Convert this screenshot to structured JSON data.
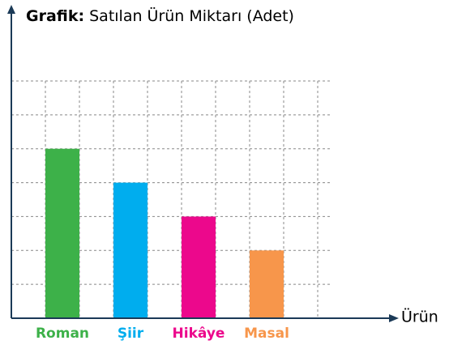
{
  "chart_data": {
    "type": "bar",
    "title_label": "Grafik:",
    "title": "Satılan Ürün Miktarı (Adet)",
    "x_label": "Ürün",
    "categories": [
      "Roman",
      "Şiir",
      "Hikâye",
      "Masal"
    ],
    "values": [
      5,
      4,
      3,
      2
    ],
    "colors": [
      "#3db149",
      "#00adee",
      "#ec088c",
      "#f7964b"
    ],
    "ylim": [
      0,
      7
    ],
    "yticks": [
      0,
      1,
      2,
      3,
      4,
      5,
      6,
      7
    ],
    "grid": true
  }
}
